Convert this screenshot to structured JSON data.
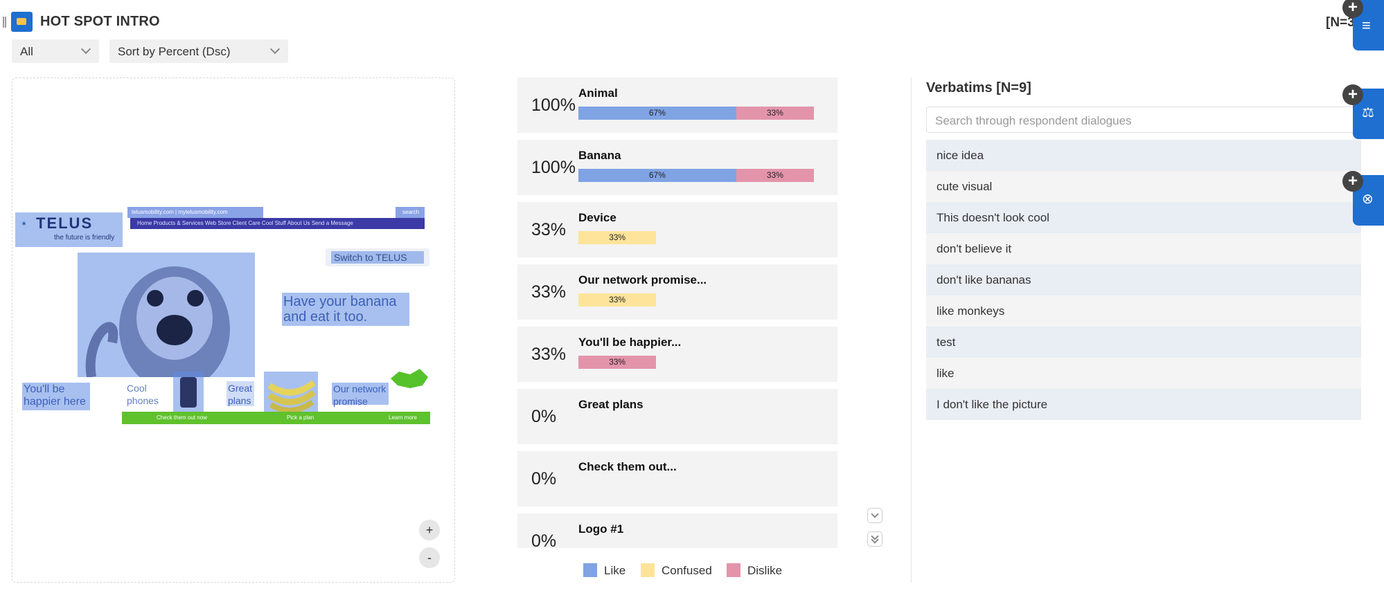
{
  "header": {
    "title": "HOT SPOT INTRO",
    "n_count": "[N=3"
  },
  "filters": {
    "group": "All",
    "sort": "Sort by Percent (Dsc)"
  },
  "image_panel": {
    "zoom_in": "+",
    "zoom_out": "-",
    "webpage": {
      "logo": "TELUS",
      "tagline": "the future is friendly",
      "links": "telusmobility.com   |   mytelusmobility.com",
      "search": "search",
      "nav": "Home    Products & Services    Web Store    Client Care    Cool Stuff    About Us    Send a Message",
      "switch": "Switch to TELUS",
      "headline": "Have your banana and eat it too.",
      "happier": "You'll be happier here",
      "cool_phones": "Cool phones",
      "great_plans": "Great plans",
      "network": "Our network promise",
      "btn1": "Check them out now",
      "btn2": "Pick a plan",
      "btn3": "Learn more"
    }
  },
  "results": [
    {
      "pct": "100%",
      "label": "Animal",
      "like": 67,
      "confused": 0,
      "dislike": 33,
      "like_label": "67%",
      "confused_label": "",
      "dislike_label": "33%"
    },
    {
      "pct": "100%",
      "label": "Banana",
      "like": 67,
      "confused": 0,
      "dislike": 33,
      "like_label": "67%",
      "confused_label": "",
      "dislike_label": "33%"
    },
    {
      "pct": "33%",
      "label": "Device",
      "like": 0,
      "confused": 33,
      "dislike": 0,
      "like_label": "",
      "confused_label": "33%",
      "dislike_label": ""
    },
    {
      "pct": "33%",
      "label": "Our network promise...",
      "like": 0,
      "confused": 33,
      "dislike": 0,
      "like_label": "",
      "confused_label": "33%",
      "dislike_label": ""
    },
    {
      "pct": "33%",
      "label": "You'll be happier...",
      "like": 0,
      "confused": 0,
      "dislike": 33,
      "like_label": "",
      "confused_label": "",
      "dislike_label": "33%"
    },
    {
      "pct": "0%",
      "label": "Great plans",
      "like": 0,
      "confused": 0,
      "dislike": 0,
      "like_label": "",
      "confused_label": "",
      "dislike_label": ""
    },
    {
      "pct": "0%",
      "label": "Check them out...",
      "like": 0,
      "confused": 0,
      "dislike": 0,
      "like_label": "",
      "confused_label": "",
      "dislike_label": ""
    },
    {
      "pct": "0%",
      "label": "Logo #1",
      "like": 0,
      "confused": 0,
      "dislike": 0,
      "like_label": "",
      "confused_label": "",
      "dislike_label": ""
    }
  ],
  "legend": {
    "like": "Like",
    "confused": "Confused",
    "dislike": "Dislike"
  },
  "colors": {
    "like": "#7fa3e3",
    "confused": "#fde49a",
    "dislike": "#e394ab",
    "accent": "#1e6fd0"
  },
  "verbatims": {
    "title": "Verbatims [N=9]",
    "search_placeholder": "Search through respondent dialogues",
    "items": [
      "nice idea",
      "cute visual",
      "This doesn't look cool",
      "don't believe it",
      "don't like bananas",
      "like monkeys",
      "test",
      "like",
      "I don't like the picture"
    ]
  },
  "rail": {
    "plus": "+",
    "icons": [
      "filter-icon",
      "scale-icon",
      "variable-icon"
    ]
  }
}
